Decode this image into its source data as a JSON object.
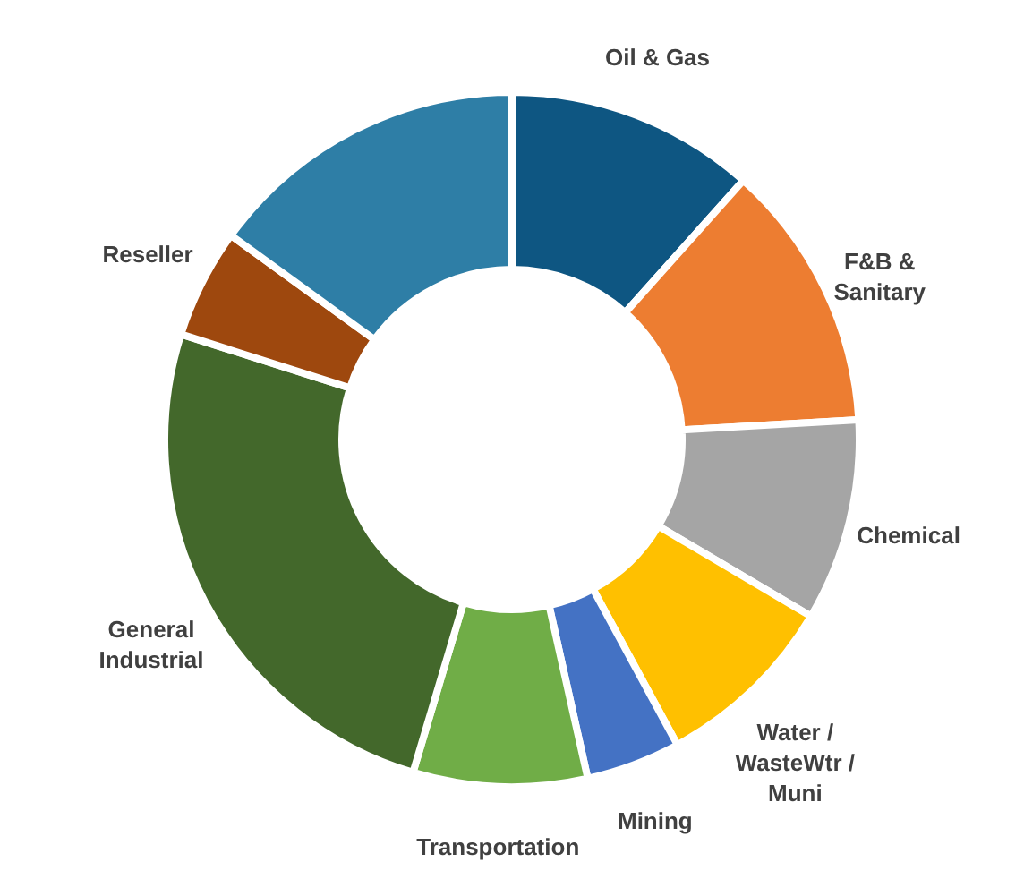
{
  "chart_data": {
    "type": "donut",
    "categories": [
      "Oil & Gas",
      "F&B & Sanitary",
      "Chemical",
      "Water / WasteWtr / Muni",
      "Mining",
      "Transportation",
      "General Industrial",
      "Reseller",
      null
    ],
    "values": [
      11.6,
      12.5,
      9.4,
      8.6,
      4.4,
      8.1,
      25.3,
      5.1,
      15.0
    ],
    "colors": [
      "#0e5682",
      "#ed7d31",
      "#a5a5a5",
      "#ffc000",
      "#4472c4",
      "#70ad47",
      "#43682b",
      "#9e480e",
      "#2e7ea6"
    ]
  }
}
